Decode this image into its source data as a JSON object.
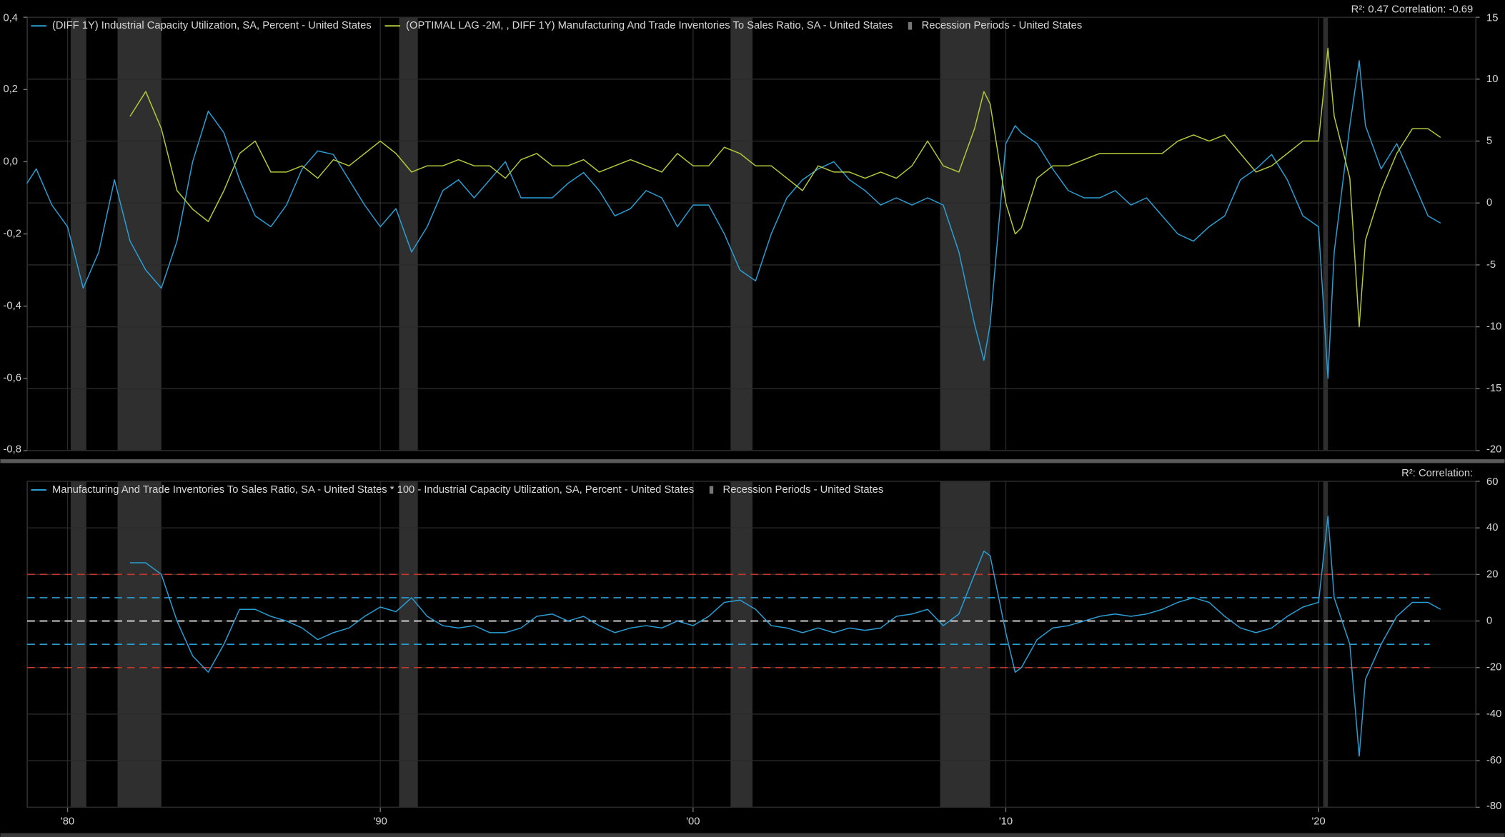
{
  "chart_data": [
    {
      "type": "line",
      "annotation": "R²: 0.47 Correlation: -0.69",
      "x": [
        1978.7,
        1979.0,
        1979.5,
        1980.0,
        1980.5,
        1981.0,
        1981.5,
        1982.0,
        1982.5,
        1983.0,
        1983.5,
        1984.0,
        1984.5,
        1985.0,
        1985.5,
        1986.0,
        1986.5,
        1987.0,
        1987.5,
        1988.0,
        1988.5,
        1989.0,
        1989.5,
        1990.0,
        1990.5,
        1991.0,
        1991.5,
        1992.0,
        1992.5,
        1993.0,
        1993.5,
        1994.0,
        1994.5,
        1995.0,
        1995.5,
        1996.0,
        1996.5,
        1997.0,
        1997.5,
        1998.0,
        1998.5,
        1999.0,
        1999.5,
        2000.0,
        2000.5,
        2001.0,
        2001.5,
        2002.0,
        2002.5,
        2003.0,
        2003.5,
        2004.0,
        2004.5,
        2005.0,
        2005.5,
        2006.0,
        2006.5,
        2007.0,
        2007.5,
        2008.0,
        2008.5,
        2009.0,
        2009.3,
        2009.5,
        2010.0,
        2010.3,
        2010.5,
        2011.0,
        2011.5,
        2012.0,
        2012.5,
        2013.0,
        2013.5,
        2014.0,
        2014.5,
        2015.0,
        2015.5,
        2016.0,
        2016.5,
        2017.0,
        2017.5,
        2018.0,
        2018.5,
        2019.0,
        2019.5,
        2020.0,
        2020.3,
        2020.5,
        2021.0,
        2021.3,
        2021.5,
        2022.0,
        2022.5,
        2023.0,
        2023.5,
        2023.9
      ],
      "xlim": [
        1978.71,
        2025.03
      ],
      "ylim": [
        -0.8,
        0.4
      ],
      "yticks": [
        {
          "value": -0.8,
          "label": "-0,8"
        },
        {
          "value": -0.6,
          "label": "-0,6"
        },
        {
          "value": -0.4,
          "label": "-0,4"
        },
        {
          "value": -0.2,
          "label": "-0,2"
        },
        {
          "value": 0,
          "label": "0,0"
        },
        {
          "value": 0.2,
          "label": "0,2"
        },
        {
          "value": 0.4,
          "label": "0,4"
        }
      ],
      "y2lim": [
        -20,
        15
      ],
      "y2ticks": [
        -20,
        -15,
        -10,
        -5,
        0,
        5,
        10,
        15
      ],
      "grid": "y2",
      "series": [
        {
          "name": "(DIFF 1Y) Industrial Capacity Utilization, SA, Percent - United States",
          "color": "#2a9fd6",
          "values": [
            -0.06,
            -0.02,
            -0.12,
            -0.18,
            -0.35,
            -0.25,
            -0.05,
            -0.22,
            -0.3,
            -0.35,
            -0.22,
            0.0,
            0.14,
            0.08,
            -0.05,
            -0.15,
            -0.18,
            -0.12,
            -0.02,
            0.03,
            0.02,
            -0.05,
            -0.12,
            -0.18,
            -0.13,
            -0.25,
            -0.18,
            -0.08,
            -0.05,
            -0.1,
            -0.05,
            0.0,
            -0.1,
            -0.1,
            -0.1,
            -0.06,
            -0.03,
            -0.08,
            -0.15,
            -0.13,
            -0.08,
            -0.1,
            -0.18,
            -0.12,
            -0.12,
            -0.2,
            -0.3,
            -0.33,
            -0.2,
            -0.1,
            -0.05,
            -0.02,
            0.0,
            -0.05,
            -0.08,
            -0.12,
            -0.1,
            -0.12,
            -0.1,
            -0.12,
            -0.25,
            -0.45,
            -0.55,
            -0.45,
            0.05,
            0.1,
            0.08,
            0.05,
            -0.02,
            -0.08,
            -0.1,
            -0.1,
            -0.08,
            -0.12,
            -0.1,
            -0.15,
            -0.2,
            -0.22,
            -0.18,
            -0.15,
            -0.05,
            -0.02,
            0.02,
            -0.05,
            -0.15,
            -0.18,
            -0.6,
            -0.25,
            0.1,
            0.28,
            0.1,
            -0.02,
            0.05,
            -0.05,
            -0.15,
            -0.17
          ]
        },
        {
          "name": "(OPTIMAL LAG -2M,  , DIFF 1Y) Manufacturing And Trade Inventories To Sales Ratio, SA - United States",
          "color": "#b5c93a",
          "axis": "y2",
          "values": [
            null,
            null,
            null,
            null,
            null,
            null,
            null,
            7,
            9,
            6,
            1,
            -0.5,
            -1.5,
            1,
            4,
            5,
            2.5,
            2.5,
            3,
            2,
            3.5,
            3,
            4,
            5,
            4,
            2.5,
            3,
            3,
            3.5,
            3,
            3,
            2,
            3.5,
            4,
            3,
            3,
            3.5,
            2.5,
            3,
            3.5,
            3,
            2.5,
            4,
            3,
            3,
            4.5,
            4,
            3,
            3,
            2,
            1,
            3,
            2.5,
            2.5,
            2,
            2.5,
            2,
            3,
            5,
            3,
            2.5,
            6,
            9,
            8,
            0,
            -2.5,
            -2,
            2,
            3,
            3,
            3.5,
            4,
            4,
            4,
            4,
            4,
            5,
            5.5,
            5,
            5.5,
            4,
            2.5,
            3,
            4,
            5,
            5,
            12.5,
            7,
            2,
            -10,
            -3,
            1,
            4,
            6,
            6,
            5.3
          ]
        }
      ],
      "recession_name": "Recession Periods - United States",
      "recession_color": "#2f2f2f",
      "recessions": [
        [
          1980.1,
          1980.6
        ],
        [
          1981.6,
          1983.0
        ],
        [
          1990.6,
          1991.2
        ],
        [
          2001.2,
          2001.9
        ],
        [
          2007.9,
          2009.5
        ],
        [
          2020.15,
          2020.3
        ]
      ]
    },
    {
      "type": "line",
      "annotation": "R²:  Correlation:",
      "x": [
        1978.7,
        1979.0,
        1979.5,
        1980.0,
        1980.5,
        1981.0,
        1981.5,
        1982.0,
        1982.5,
        1983.0,
        1983.5,
        1984.0,
        1984.5,
        1985.0,
        1985.5,
        1986.0,
        1986.5,
        1987.0,
        1987.5,
        1988.0,
        1988.5,
        1989.0,
        1989.5,
        1990.0,
        1990.5,
        1991.0,
        1991.5,
        1992.0,
        1992.5,
        1993.0,
        1993.5,
        1994.0,
        1994.5,
        1995.0,
        1995.5,
        1996.0,
        1996.5,
        1997.0,
        1997.5,
        1998.0,
        1998.5,
        1999.0,
        1999.5,
        2000.0,
        2000.5,
        2001.0,
        2001.5,
        2002.0,
        2002.5,
        2003.0,
        2003.5,
        2004.0,
        2004.5,
        2005.0,
        2005.5,
        2006.0,
        2006.5,
        2007.0,
        2007.5,
        2008.0,
        2008.5,
        2009.0,
        2009.3,
        2009.5,
        2010.0,
        2010.3,
        2010.5,
        2011.0,
        2011.5,
        2012.0,
        2012.5,
        2013.0,
        2013.5,
        2014.0,
        2014.5,
        2015.0,
        2015.5,
        2016.0,
        2016.5,
        2017.0,
        2017.5,
        2018.0,
        2018.5,
        2019.0,
        2019.5,
        2020.0,
        2020.3,
        2020.5,
        2021.0,
        2021.3,
        2021.5,
        2022.0,
        2022.5,
        2023.0,
        2023.5,
        2023.9
      ],
      "xlim": [
        1978.71,
        2025.03
      ],
      "xticks": [
        {
          "value": 1980,
          "label": "'80"
        },
        {
          "value": 1990,
          "label": "'90"
        },
        {
          "value": 2000,
          "label": "'00"
        },
        {
          "value": 2010,
          "label": "'10"
        },
        {
          "value": 2020,
          "label": "'20"
        }
      ],
      "ylim": [
        -80,
        60
      ],
      "yticks": [
        -80,
        -60,
        -40,
        -20,
        0,
        20,
        40,
        60
      ],
      "y_axis": "right",
      "grid": "y",
      "series": [
        {
          "name": "Manufacturing And Trade Inventories To Sales Ratio, SA - United States * 100 - Industrial Capacity Utilization, SA, Percent - United States",
          "color": "#2a9fd6",
          "values": [
            null,
            null,
            null,
            null,
            null,
            null,
            null,
            25,
            25,
            20,
            0,
            -15,
            -22,
            -10,
            5,
            5,
            2,
            0,
            -3,
            -8,
            -5,
            -3,
            2,
            6,
            4,
            10,
            2,
            -2,
            -3,
            -2,
            -5,
            -5,
            -3,
            2,
            3,
            0,
            2,
            -2,
            -5,
            -3,
            -2,
            -3,
            0,
            -2,
            2,
            8,
            9,
            5,
            -2,
            -3,
            -5,
            -3,
            -5,
            -3,
            -4,
            -3,
            2,
            3,
            5,
            -2,
            3,
            20,
            30,
            28,
            -5,
            -22,
            -20,
            -8,
            -3,
            -2,
            0,
            2,
            3,
            2,
            3,
            5,
            8,
            10,
            8,
            2,
            -3,
            -5,
            -3,
            2,
            6,
            8,
            45,
            10,
            -10,
            -58,
            -25,
            -10,
            2,
            8,
            8,
            5
          ]
        }
      ],
      "hlines": [
        {
          "value": 20,
          "color": "#c0392b"
        },
        {
          "value": 10,
          "color": "#2a9fd6"
        },
        {
          "value": 0,
          "color": "#ffffff"
        },
        {
          "value": -10,
          "color": "#2a9fd6"
        },
        {
          "value": -20,
          "color": "#c0392b"
        }
      ],
      "recession_name": "Recession Periods - United States",
      "recession_color": "#2f2f2f",
      "recessions": [
        [
          1980.1,
          1980.6
        ],
        [
          1981.6,
          1983.0
        ],
        [
          1990.6,
          1991.2
        ],
        [
          2001.2,
          2001.9
        ],
        [
          2007.9,
          2009.5
        ],
        [
          2020.15,
          2020.3
        ]
      ]
    }
  ]
}
